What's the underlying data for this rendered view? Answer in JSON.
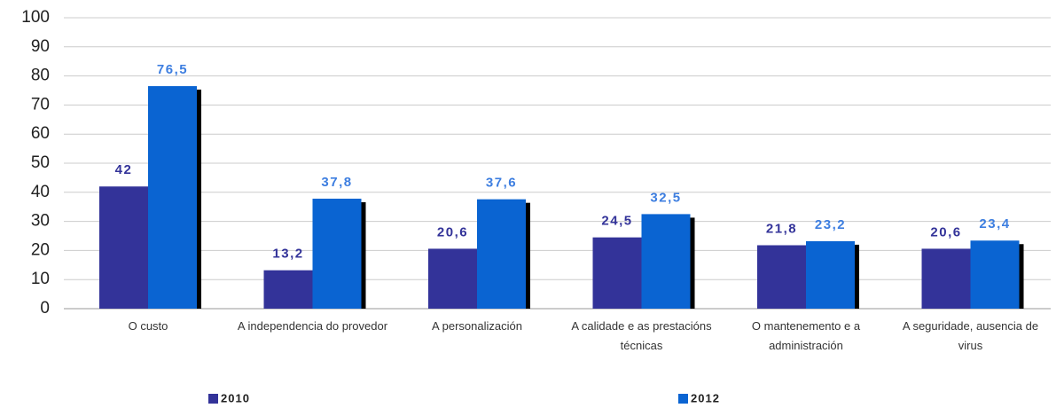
{
  "chart_data": {
    "type": "bar",
    "categories": [
      "O custo",
      "A independencia do provedor",
      "A personalización",
      "A calidade e as prestacións técnicas",
      "O mantenemento e a administración",
      "A seguridade, ausencia de virus"
    ],
    "series": [
      {
        "name": "2010",
        "color": "#333399",
        "label_color": "#333399",
        "values": [
          42,
          13.2,
          20.6,
          24.5,
          21.8,
          20.6
        ],
        "value_labels": [
          "42",
          "13,2",
          "20,6",
          "24,5",
          "21,8",
          "20,6"
        ]
      },
      {
        "name": "2012",
        "color": "#0a64d2",
        "label_color": "#3d7ee0",
        "values": [
          76.5,
          37.8,
          37.6,
          32.5,
          23.2,
          23.4
        ],
        "value_labels": [
          "76,5",
          "37,8",
          "37,6",
          "32,5",
          "23,2",
          "23,4"
        ]
      }
    ],
    "ylim": [
      0,
      100
    ],
    "yticks": [
      0,
      10,
      20,
      30,
      40,
      50,
      60,
      70,
      80,
      90,
      100
    ],
    "grid": true
  }
}
